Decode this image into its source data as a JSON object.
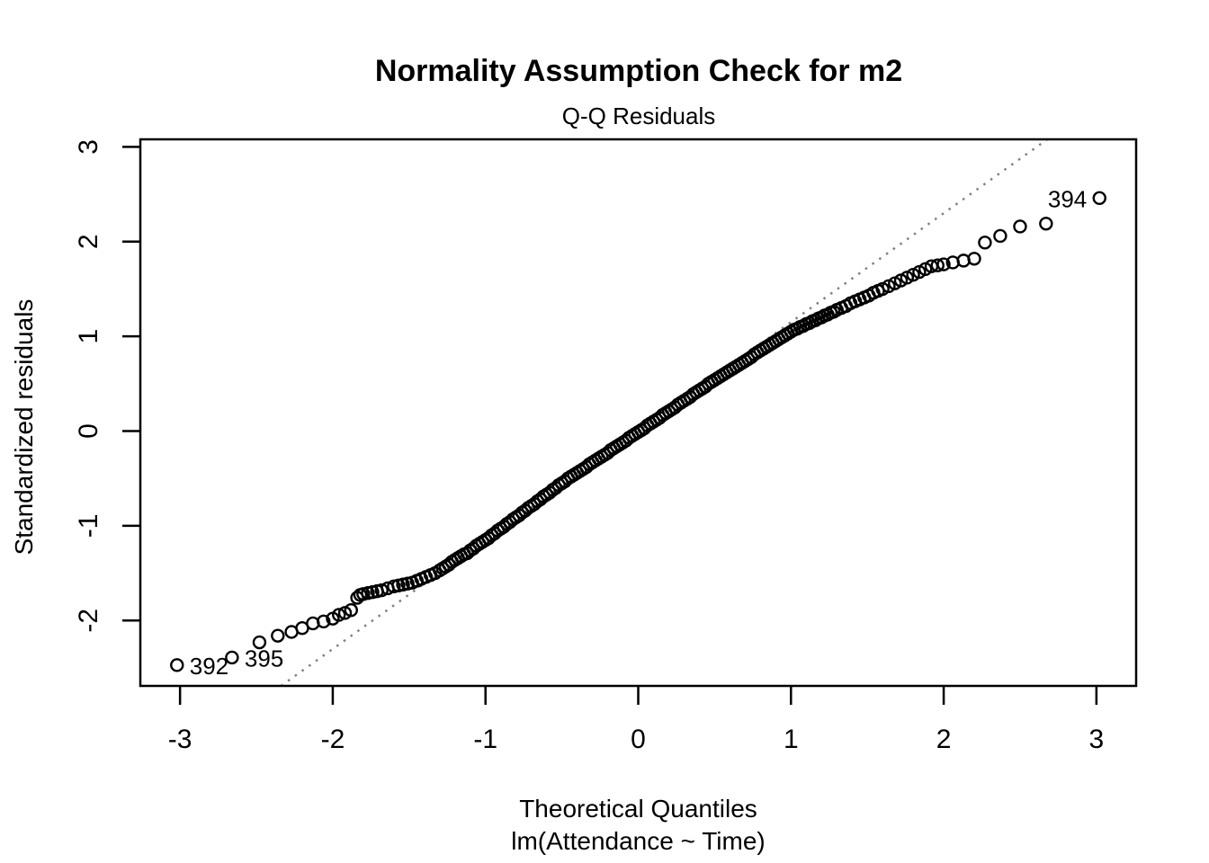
{
  "chart_data": {
    "type": "scatter",
    "subtype": "qq-normal-plot",
    "title": "Normality Assumption Check for m2",
    "subtitle": "Q-Q Residuals",
    "xlabel": "Theoretical Quantiles",
    "xlabel_line2": "lm(Attendance ~ Time)",
    "ylabel": "Standardized residuals",
    "xlim": [
      -3.26,
      3.26
    ],
    "ylim": [
      -2.69,
      3.08
    ],
    "x_ticks": [
      -3,
      -2,
      -1,
      0,
      1,
      2,
      3
    ],
    "y_ticks": [
      -2,
      -1,
      0,
      1,
      2,
      3
    ],
    "grid": false,
    "legend": null,
    "colors": {
      "points": "#000000",
      "ref_line": "#808080",
      "axis": "#000000"
    },
    "ref_line": {
      "slope": 1.15,
      "intercept": 0,
      "style": "dotted"
    },
    "labeled_points": [
      {
        "label": "392",
        "x": -3.02,
        "y": -2.47,
        "side": "right"
      },
      {
        "label": "395",
        "x": -2.66,
        "y": -2.39,
        "side": "right"
      },
      {
        "label": "394",
        "x": 3.02,
        "y": 2.46,
        "side": "left"
      }
    ],
    "points": [
      [
        -3.02,
        -2.47
      ],
      [
        -2.66,
        -2.39
      ],
      [
        -2.48,
        -2.23
      ],
      [
        -2.36,
        -2.16
      ],
      [
        -2.27,
        -2.12
      ],
      [
        -2.2,
        -2.08
      ],
      [
        -2.13,
        -2.03
      ],
      [
        -2.06,
        -2.01
      ],
      [
        -2.0,
        -1.98
      ],
      [
        -1.96,
        -1.94
      ],
      [
        -1.92,
        -1.92
      ],
      [
        -1.88,
        -1.89
      ],
      [
        -1.84,
        -1.76
      ],
      [
        -1.82,
        -1.73
      ],
      [
        -1.8,
        -1.72
      ],
      [
        -1.77,
        -1.71
      ],
      [
        -1.74,
        -1.7
      ],
      [
        -1.71,
        -1.69
      ],
      [
        -1.68,
        -1.68
      ],
      [
        -1.64,
        -1.66
      ],
      [
        -1.6,
        -1.64
      ],
      [
        -1.57,
        -1.63
      ],
      [
        -1.54,
        -1.62
      ],
      [
        -1.51,
        -1.61
      ],
      [
        -1.48,
        -1.6
      ],
      [
        -1.45,
        -1.58
      ],
      [
        -1.42,
        -1.56
      ],
      [
        -1.39,
        -1.54
      ],
      [
        -1.36,
        -1.52
      ],
      [
        -1.33,
        -1.5
      ],
      [
        -1.3,
        -1.47
      ],
      [
        -1.28,
        -1.45
      ],
      [
        -1.26,
        -1.43
      ],
      [
        -1.24,
        -1.41
      ],
      [
        -1.22,
        -1.38
      ],
      [
        -1.2,
        -1.36
      ],
      [
        -1.18,
        -1.34
      ],
      [
        -1.16,
        -1.32
      ],
      [
        -1.14,
        -1.3
      ],
      [
        -1.12,
        -1.29
      ],
      [
        -1.1,
        -1.26
      ],
      [
        -1.08,
        -1.24
      ],
      [
        -1.06,
        -1.21
      ],
      [
        -1.04,
        -1.19
      ],
      [
        -1.02,
        -1.17
      ],
      [
        -1.0,
        -1.15
      ],
      [
        -0.98,
        -1.13
      ],
      [
        -0.96,
        -1.1
      ],
      [
        -0.94,
        -1.08
      ],
      [
        -0.92,
        -1.05
      ],
      [
        -0.9,
        -1.03
      ],
      [
        -0.88,
        -1.01
      ],
      [
        -0.86,
        -0.98
      ],
      [
        -0.84,
        -0.96
      ],
      [
        -0.82,
        -0.93
      ],
      [
        -0.8,
        -0.91
      ],
      [
        -0.78,
        -0.89
      ],
      [
        -0.76,
        -0.86
      ],
      [
        -0.74,
        -0.84
      ],
      [
        -0.72,
        -0.81
      ],
      [
        -0.7,
        -0.79
      ],
      [
        -0.68,
        -0.77
      ],
      [
        -0.66,
        -0.74
      ],
      [
        -0.64,
        -0.72
      ],
      [
        -0.62,
        -0.69
      ],
      [
        -0.6,
        -0.67
      ],
      [
        -0.58,
        -0.65
      ],
      [
        -0.56,
        -0.62
      ],
      [
        -0.54,
        -0.6
      ],
      [
        -0.52,
        -0.57
      ],
      [
        -0.5,
        -0.55
      ],
      [
        -0.48,
        -0.53
      ],
      [
        -0.46,
        -0.5
      ],
      [
        -0.44,
        -0.48
      ],
      [
        -0.42,
        -0.46
      ],
      [
        -0.4,
        -0.44
      ],
      [
        -0.38,
        -0.42
      ],
      [
        -0.36,
        -0.4
      ],
      [
        -0.34,
        -0.38
      ],
      [
        -0.32,
        -0.35
      ],
      [
        -0.3,
        -0.33
      ],
      [
        -0.28,
        -0.31
      ],
      [
        -0.26,
        -0.29
      ],
      [
        -0.24,
        -0.27
      ],
      [
        -0.22,
        -0.25
      ],
      [
        -0.2,
        -0.23
      ],
      [
        -0.18,
        -0.2
      ],
      [
        -0.16,
        -0.18
      ],
      [
        -0.14,
        -0.16
      ],
      [
        -0.12,
        -0.14
      ],
      [
        -0.1,
        -0.12
      ],
      [
        -0.08,
        -0.1
      ],
      [
        -0.06,
        -0.07
      ],
      [
        -0.04,
        -0.05
      ],
      [
        -0.02,
        -0.03
      ],
      [
        0.0,
        -0.01
      ],
      [
        0.02,
        0.01
      ],
      [
        0.04,
        0.03
      ],
      [
        0.06,
        0.06
      ],
      [
        0.08,
        0.08
      ],
      [
        0.1,
        0.1
      ],
      [
        0.12,
        0.12
      ],
      [
        0.14,
        0.14
      ],
      [
        0.16,
        0.17
      ],
      [
        0.18,
        0.19
      ],
      [
        0.2,
        0.21
      ],
      [
        0.22,
        0.23
      ],
      [
        0.24,
        0.25
      ],
      [
        0.26,
        0.28
      ],
      [
        0.28,
        0.3
      ],
      [
        0.3,
        0.32
      ],
      [
        0.32,
        0.34
      ],
      [
        0.34,
        0.36
      ],
      [
        0.36,
        0.39
      ],
      [
        0.38,
        0.41
      ],
      [
        0.4,
        0.43
      ],
      [
        0.42,
        0.45
      ],
      [
        0.44,
        0.47
      ],
      [
        0.46,
        0.5
      ],
      [
        0.48,
        0.52
      ],
      [
        0.5,
        0.54
      ],
      [
        0.52,
        0.56
      ],
      [
        0.54,
        0.58
      ],
      [
        0.56,
        0.6
      ],
      [
        0.58,
        0.62
      ],
      [
        0.6,
        0.64
      ],
      [
        0.62,
        0.66
      ],
      [
        0.64,
        0.68
      ],
      [
        0.66,
        0.7
      ],
      [
        0.68,
        0.72
      ],
      [
        0.7,
        0.74
      ],
      [
        0.72,
        0.76
      ],
      [
        0.74,
        0.78
      ],
      [
        0.76,
        0.81
      ],
      [
        0.78,
        0.83
      ],
      [
        0.8,
        0.85
      ],
      [
        0.82,
        0.87
      ],
      [
        0.84,
        0.89
      ],
      [
        0.86,
        0.91
      ],
      [
        0.88,
        0.93
      ],
      [
        0.9,
        0.95
      ],
      [
        0.92,
        0.97
      ],
      [
        0.94,
        0.99
      ],
      [
        0.96,
        1.01
      ],
      [
        0.98,
        1.03
      ],
      [
        1.0,
        1.05
      ],
      [
        1.02,
        1.07
      ],
      [
        1.04,
        1.08
      ],
      [
        1.06,
        1.1
      ],
      [
        1.08,
        1.11
      ],
      [
        1.1,
        1.13
      ],
      [
        1.12,
        1.14
      ],
      [
        1.14,
        1.16
      ],
      [
        1.16,
        1.17
      ],
      [
        1.18,
        1.19
      ],
      [
        1.2,
        1.2
      ],
      [
        1.22,
        1.22
      ],
      [
        1.24,
        1.23
      ],
      [
        1.26,
        1.25
      ],
      [
        1.28,
        1.26
      ],
      [
        1.3,
        1.28
      ],
      [
        1.33,
        1.3
      ],
      [
        1.36,
        1.32
      ],
      [
        1.39,
        1.35
      ],
      [
        1.42,
        1.37
      ],
      [
        1.45,
        1.39
      ],
      [
        1.48,
        1.41
      ],
      [
        1.51,
        1.43
      ],
      [
        1.54,
        1.46
      ],
      [
        1.57,
        1.48
      ],
      [
        1.6,
        1.5
      ],
      [
        1.64,
        1.53
      ],
      [
        1.68,
        1.56
      ],
      [
        1.72,
        1.59
      ],
      [
        1.76,
        1.62
      ],
      [
        1.8,
        1.65
      ],
      [
        1.84,
        1.68
      ],
      [
        1.88,
        1.71
      ],
      [
        1.92,
        1.74
      ],
      [
        1.96,
        1.75
      ],
      [
        2.0,
        1.76
      ],
      [
        2.06,
        1.78
      ],
      [
        2.13,
        1.8
      ],
      [
        2.2,
        1.82
      ],
      [
        2.27,
        1.99
      ],
      [
        2.37,
        2.06
      ],
      [
        2.5,
        2.16
      ],
      [
        2.67,
        2.19
      ],
      [
        3.02,
        2.46
      ]
    ]
  }
}
